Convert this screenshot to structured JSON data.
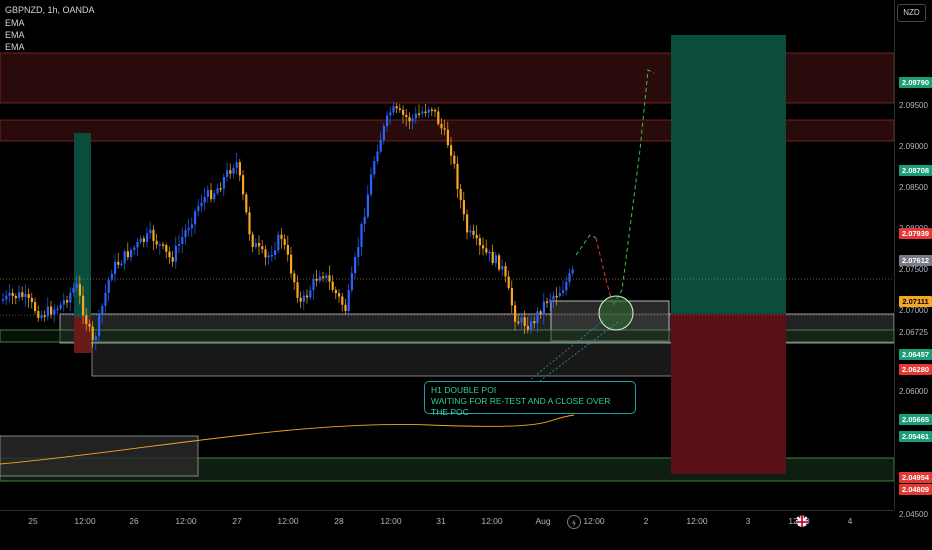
{
  "header": {
    "symbol_line": "GBPNZD, 1h, OANDA",
    "indicators": [
      "EMA",
      "EMA",
      "EMA"
    ],
    "currency": "NZD"
  },
  "price_axis": {
    "labels": [
      {
        "price": "2.09500",
        "value": 2.095
      },
      {
        "price": "2.09000",
        "value": 2.09
      },
      {
        "price": "2.08500",
        "value": 2.085
      },
      {
        "price": "2.08000",
        "value": 2.08
      },
      {
        "price": "2.07500",
        "value": 2.075
      },
      {
        "price": "2.07000",
        "value": 2.07
      },
      {
        "price": "2.06725",
        "value": 2.06725
      },
      {
        "price": "2.06000",
        "value": 2.06
      },
      {
        "price": "2.04500",
        "value": 2.045
      }
    ],
    "badges": [
      {
        "text": "2.09790",
        "value": 2.0979,
        "bg": "#1b9e77",
        "fg": "#ffffff"
      },
      {
        "text": "2.08708",
        "value": 2.08708,
        "bg": "#1b9e77",
        "fg": "#ffffff"
      },
      {
        "text": "2.07939",
        "value": 2.07939,
        "bg": "#e53935",
        "fg": "#ffffff"
      },
      {
        "text": "2.07612",
        "value": 2.07612,
        "bg": "#787b86",
        "fg": "#ffffff"
      },
      {
        "text": "2.07111",
        "value": 2.07111,
        "bg": "#f5a623",
        "fg": "#000000"
      },
      {
        "text": "2.06457",
        "value": 2.06457,
        "bg": "#1b9e77",
        "fg": "#ffffff"
      },
      {
        "text": "2.06280",
        "value": 2.0628,
        "bg": "#e53935",
        "fg": "#ffffff"
      },
      {
        "text": "2.05665",
        "value": 2.05665,
        "bg": "#1b9e77",
        "fg": "#ffffff"
      },
      {
        "text": "2.05461",
        "value": 2.05461,
        "bg": "#1b9e77",
        "fg": "#ffffff"
      },
      {
        "text": "2.04954",
        "value": 2.04954,
        "bg": "#e53935",
        "fg": "#ffffff"
      },
      {
        "text": "2.04809",
        "value": 2.04809,
        "bg": "#e53935",
        "fg": "#ffffff"
      }
    ]
  },
  "time_axis": [
    "25",
    "12:00",
    "26",
    "12:00",
    "27",
    "12:00",
    "28",
    "12:00",
    "31",
    "12:00",
    "Aug",
    "12:00",
    "2",
    "12:00",
    "3",
    "12:00",
    "4"
  ],
  "annotation": {
    "line1": "H1 DOUBLE POI",
    "line2": "WAITING FOR RE-TEST AND A CLOSE OVER THE POC"
  },
  "colors": {
    "up": "#2962ff",
    "down": "#f5a623",
    "tp": "#0b4d3d",
    "sl": "#5a1016",
    "zone": "#3a1010"
  },
  "icons": {
    "lightning": "lightning-icon",
    "flag": "uk-flag-icon"
  }
}
